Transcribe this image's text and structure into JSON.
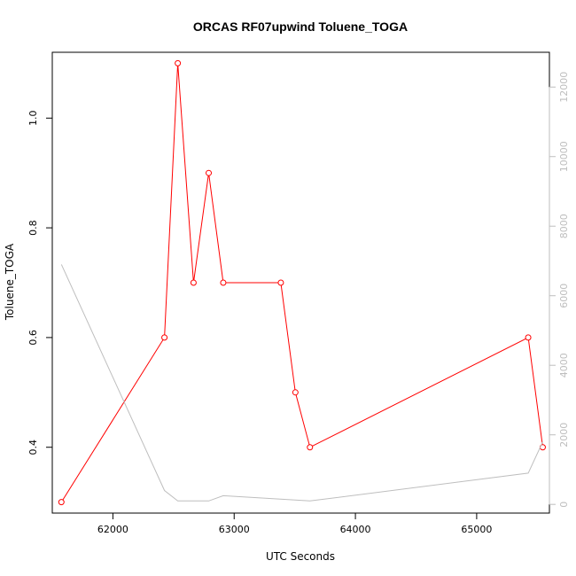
{
  "chart_data": {
    "type": "line",
    "title": "ORCAS RF07upwind Toluene_TOGA",
    "xlabel": "UTC Seconds",
    "ylabel": "Toluene_TOGA",
    "xlim": [
      61500,
      65600
    ],
    "ylim": [
      0.28,
      1.12
    ],
    "y2lim": [
      -250,
      13000
    ],
    "x_ticks": [
      62000,
      63000,
      64000,
      65000
    ],
    "y_ticks": [
      0.4,
      0.6,
      0.8,
      1.0
    ],
    "y_tick_labels": [
      "0.4",
      "0.6",
      "0.8",
      "1.0"
    ],
    "y2_ticks": [
      0,
      2000,
      4000,
      6000,
      8000,
      10000,
      12000
    ],
    "grid": false,
    "series": [
      {
        "axis": "left",
        "color": "#ff0000",
        "markers": true,
        "x": [
          61575,
          62425,
          62535,
          62665,
          62790,
          62910,
          63385,
          63505,
          63625,
          65425,
          65545
        ],
        "y": [
          0.3,
          0.6,
          1.1,
          0.7,
          0.9,
          0.7,
          0.7,
          0.5,
          0.4,
          0.6,
          0.4
        ]
      },
      {
        "axis": "right",
        "color": "#bebebe",
        "markers": false,
        "x": [
          61575,
          62425,
          62535,
          62790,
          62910,
          63625,
          65425,
          65545
        ],
        "y": [
          6900,
          400,
          100,
          100,
          250,
          100,
          900,
          1800
        ]
      }
    ]
  }
}
